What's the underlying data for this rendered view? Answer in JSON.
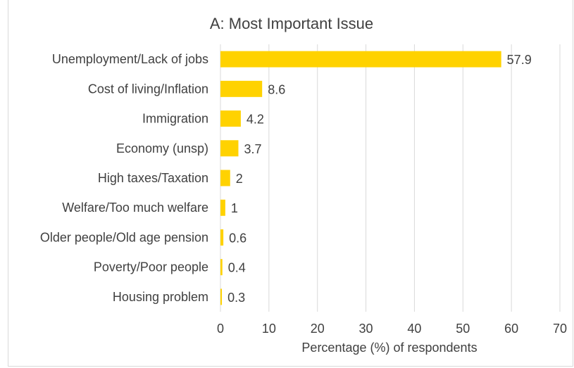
{
  "chart_data": {
    "type": "bar",
    "orientation": "horizontal",
    "title": "A: Most Important Issue",
    "xlabel": "Percentage (%) of respondents",
    "ylabel": "",
    "categories": [
      "Unemployment/Lack of jobs",
      "Cost of living/Inflation",
      "Immigration",
      "Economy (unsp)",
      "High taxes/Taxation",
      "Welfare/Too much welfare",
      "Older people/Old age pension",
      "Poverty/Poor people",
      "Housing problem"
    ],
    "values": [
      57.9,
      8.6,
      4.2,
      3.7,
      2,
      1,
      0.6,
      0.4,
      0.3
    ],
    "value_labels": [
      "57.9",
      "8.6",
      "4.2",
      "3.7",
      "2",
      "1",
      "0.6",
      "0.4",
      "0.3"
    ],
    "xlim": [
      0,
      70
    ],
    "xticks": [
      0,
      10,
      20,
      30,
      40,
      50,
      60,
      70
    ],
    "grid": "vertical",
    "legend": "none",
    "bar_color": "#ffd200",
    "gridline_color": "#d9d9d9",
    "text_color": "#404040"
  }
}
